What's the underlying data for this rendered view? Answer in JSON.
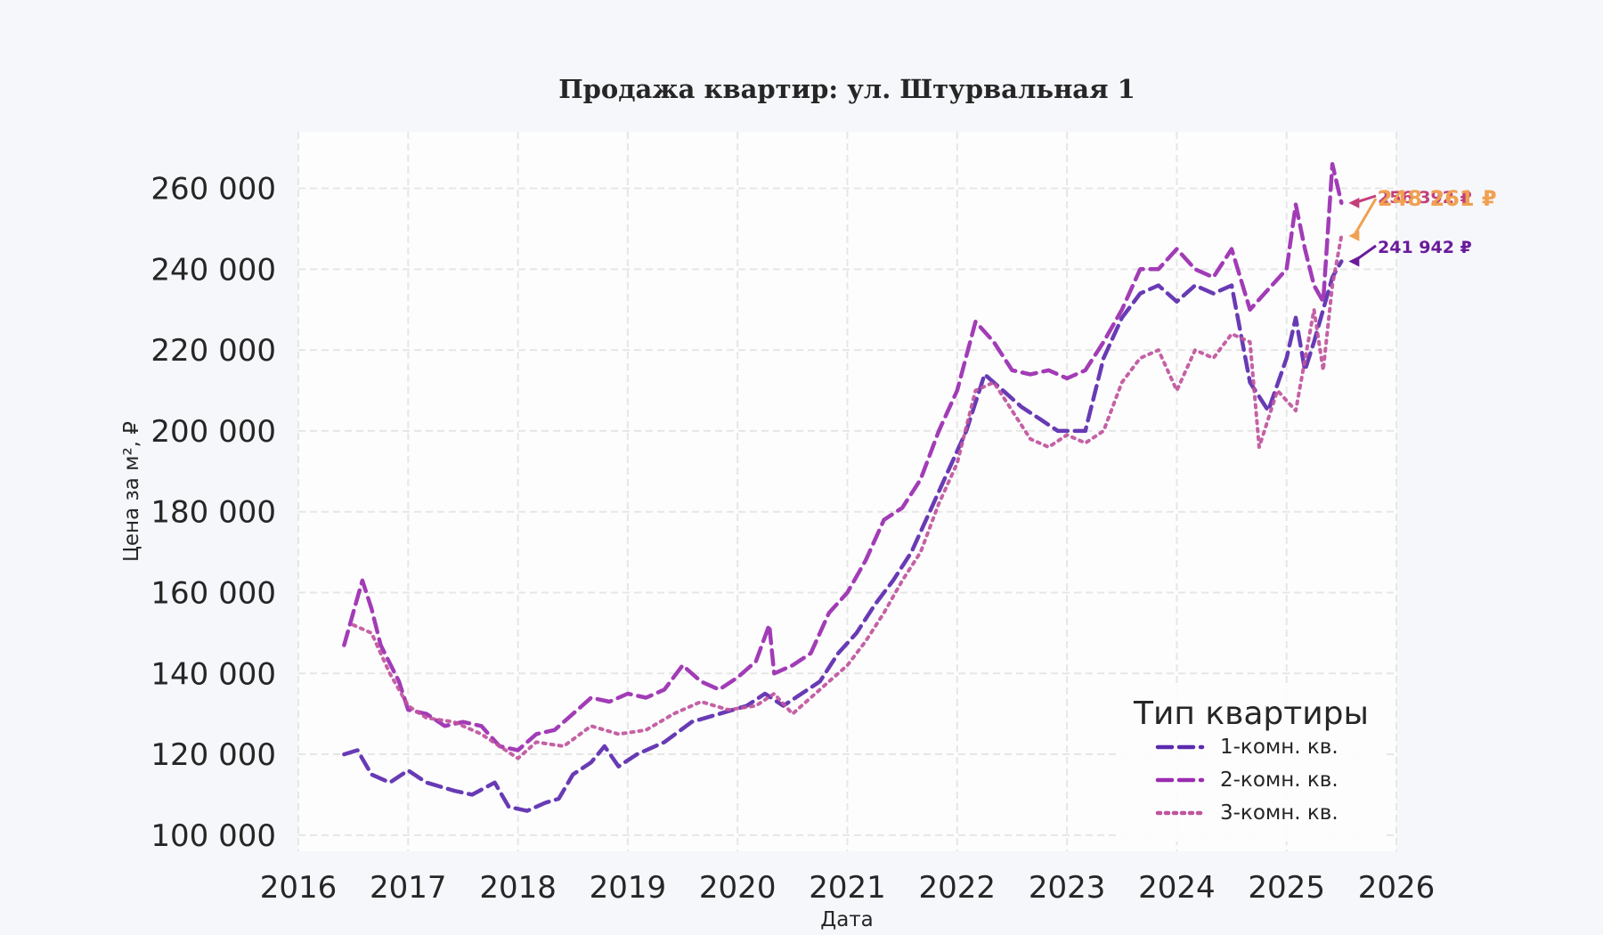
{
  "chart_data": {
    "type": "line",
    "title": "Продажа квартир: ул. Штурвальная 1",
    "xlabel": "Дата",
    "ylabel": "Цена за м², ₽",
    "x_ticks": [
      "2016",
      "2017",
      "2018",
      "2019",
      "2020",
      "2021",
      "2022",
      "2023",
      "2024",
      "2025",
      "2026"
    ],
    "y_ticks": [
      "100 000",
      "120 000",
      "140 000",
      "160 000",
      "180 000",
      "200 000",
      "220 000",
      "240 000",
      "260 000"
    ],
    "xlim": [
      "2016-01-01",
      "2026-01-01"
    ],
    "ylim": [
      96000,
      274000
    ],
    "grid": true,
    "legend": {
      "title": "Тип квартиры",
      "placement": "bottom-right"
    },
    "series": [
      {
        "name": "1-комн. кв.",
        "color": "#5b2aae",
        "style": "dashed",
        "points": [
          [
            "2016-06-01",
            120000
          ],
          [
            "2016-07-15",
            121000
          ],
          [
            "2016-09-01",
            115000
          ],
          [
            "2016-11-01",
            113000
          ],
          [
            "2017-01-01",
            116000
          ],
          [
            "2017-03-01",
            113000
          ],
          [
            "2017-06-01",
            111000
          ],
          [
            "2017-08-01",
            110000
          ],
          [
            "2017-10-15",
            113000
          ],
          [
            "2017-12-01",
            107000
          ],
          [
            "2018-02-01",
            106000
          ],
          [
            "2018-04-01",
            108000
          ],
          [
            "2018-05-15",
            109000
          ],
          [
            "2018-07-01",
            115000
          ],
          [
            "2018-09-01",
            118000
          ],
          [
            "2018-10-15",
            122000
          ],
          [
            "2018-12-01",
            117000
          ],
          [
            "2019-02-01",
            120000
          ],
          [
            "2019-05-01",
            123000
          ],
          [
            "2019-08-01",
            128000
          ],
          [
            "2019-11-01",
            130000
          ],
          [
            "2020-02-01",
            132000
          ],
          [
            "2020-04-01",
            135000
          ],
          [
            "2020-06-01",
            132000
          ],
          [
            "2020-08-01",
            135000
          ],
          [
            "2020-10-01",
            138000
          ],
          [
            "2020-12-01",
            145000
          ],
          [
            "2021-02-01",
            150000
          ],
          [
            "2021-04-01",
            157000
          ],
          [
            "2021-06-01",
            163000
          ],
          [
            "2021-08-01",
            170000
          ],
          [
            "2021-10-01",
            180000
          ],
          [
            "2021-12-01",
            190000
          ],
          [
            "2022-02-01",
            200000
          ],
          [
            "2022-04-01",
            214000
          ],
          [
            "2022-06-01",
            210000
          ],
          [
            "2022-08-01",
            206000
          ],
          [
            "2022-10-01",
            203000
          ],
          [
            "2022-12-01",
            200000
          ],
          [
            "2023-03-01",
            200000
          ],
          [
            "2023-05-01",
            218000
          ],
          [
            "2023-07-01",
            228000
          ],
          [
            "2023-09-01",
            234000
          ],
          [
            "2023-11-01",
            236000
          ],
          [
            "2024-01-01",
            232000
          ],
          [
            "2024-03-01",
            236000
          ],
          [
            "2024-05-01",
            234000
          ],
          [
            "2024-07-01",
            236000
          ],
          [
            "2024-09-01",
            212000
          ],
          [
            "2024-11-01",
            205000
          ],
          [
            "2025-01-01",
            218000
          ],
          [
            "2025-02-01",
            228000
          ],
          [
            "2025-03-01",
            215000
          ],
          [
            "2025-04-01",
            222000
          ],
          [
            "2025-05-01",
            230000
          ],
          [
            "2025-06-01",
            238000
          ],
          [
            "2025-07-01",
            241942
          ]
        ]
      },
      {
        "name": "2-комн. кв.",
        "color": "#9a2bb0",
        "style": "dashed",
        "points": [
          [
            "2016-06-01",
            147000
          ],
          [
            "2016-07-01",
            155000
          ],
          [
            "2016-08-01",
            163000
          ],
          [
            "2016-09-01",
            156000
          ],
          [
            "2016-10-01",
            147000
          ],
          [
            "2016-12-01",
            138000
          ],
          [
            "2017-01-01",
            131000
          ],
          [
            "2017-03-01",
            130000
          ],
          [
            "2017-05-01",
            127000
          ],
          [
            "2017-07-01",
            128000
          ],
          [
            "2017-09-01",
            127000
          ],
          [
            "2017-11-01",
            122000
          ],
          [
            "2018-01-01",
            121000
          ],
          [
            "2018-03-01",
            125000
          ],
          [
            "2018-05-01",
            126000
          ],
          [
            "2018-07-01",
            130000
          ],
          [
            "2018-09-01",
            134000
          ],
          [
            "2018-11-01",
            133000
          ],
          [
            "2019-01-01",
            135000
          ],
          [
            "2019-03-01",
            134000
          ],
          [
            "2019-05-01",
            136000
          ],
          [
            "2019-07-01",
            142000
          ],
          [
            "2019-09-01",
            138000
          ],
          [
            "2019-11-01",
            136000
          ],
          [
            "2020-01-01",
            139000
          ],
          [
            "2020-03-01",
            143000
          ],
          [
            "2020-04-15",
            152000
          ],
          [
            "2020-05-01",
            140000
          ],
          [
            "2020-07-01",
            142000
          ],
          [
            "2020-09-01",
            145000
          ],
          [
            "2020-11-01",
            155000
          ],
          [
            "2021-01-01",
            160000
          ],
          [
            "2021-03-01",
            168000
          ],
          [
            "2021-05-01",
            178000
          ],
          [
            "2021-07-01",
            181000
          ],
          [
            "2021-09-01",
            188000
          ],
          [
            "2021-11-01",
            200000
          ],
          [
            "2022-01-01",
            210000
          ],
          [
            "2022-03-01",
            227000
          ],
          [
            "2022-05-01",
            222000
          ],
          [
            "2022-07-01",
            215000
          ],
          [
            "2022-09-01",
            214000
          ],
          [
            "2022-11-01",
            215000
          ],
          [
            "2023-01-01",
            213000
          ],
          [
            "2023-03-01",
            215000
          ],
          [
            "2023-05-01",
            222000
          ],
          [
            "2023-07-01",
            230000
          ],
          [
            "2023-09-01",
            240000
          ],
          [
            "2023-11-01",
            240000
          ],
          [
            "2024-01-01",
            245000
          ],
          [
            "2024-03-01",
            240000
          ],
          [
            "2024-05-01",
            238000
          ],
          [
            "2024-07-01",
            245000
          ],
          [
            "2024-09-01",
            230000
          ],
          [
            "2024-11-01",
            235000
          ],
          [
            "2025-01-01",
            240000
          ],
          [
            "2025-02-01",
            256000
          ],
          [
            "2025-03-01",
            245000
          ],
          [
            "2025-04-01",
            236000
          ],
          [
            "2025-05-01",
            232000
          ],
          [
            "2025-06-01",
            266000
          ],
          [
            "2025-07-01",
            256392
          ]
        ]
      },
      {
        "name": "3-комн. кв.",
        "color": "#c0549c",
        "style": "dotted",
        "points": [
          [
            "2016-07-01",
            152000
          ],
          [
            "2016-09-01",
            150000
          ],
          [
            "2016-11-01",
            140000
          ],
          [
            "2017-01-01",
            132000
          ],
          [
            "2017-03-01",
            129000
          ],
          [
            "2017-06-01",
            128000
          ],
          [
            "2017-09-01",
            125000
          ],
          [
            "2017-11-01",
            122000
          ],
          [
            "2018-01-01",
            119000
          ],
          [
            "2018-03-01",
            123000
          ],
          [
            "2018-06-01",
            122000
          ],
          [
            "2018-09-01",
            127000
          ],
          [
            "2018-12-01",
            125000
          ],
          [
            "2019-03-01",
            126000
          ],
          [
            "2019-06-01",
            130000
          ],
          [
            "2019-09-01",
            133000
          ],
          [
            "2019-12-01",
            131000
          ],
          [
            "2020-03-01",
            132000
          ],
          [
            "2020-05-01",
            135000
          ],
          [
            "2020-07-01",
            130000
          ],
          [
            "2020-09-01",
            134000
          ],
          [
            "2020-11-01",
            138000
          ],
          [
            "2021-01-01",
            142000
          ],
          [
            "2021-03-01",
            148000
          ],
          [
            "2021-05-01",
            155000
          ],
          [
            "2021-07-01",
            163000
          ],
          [
            "2021-09-01",
            170000
          ],
          [
            "2021-11-01",
            182000
          ],
          [
            "2022-01-01",
            192000
          ],
          [
            "2022-03-01",
            210000
          ],
          [
            "2022-05-01",
            212000
          ],
          [
            "2022-07-01",
            205000
          ],
          [
            "2022-09-01",
            198000
          ],
          [
            "2022-11-01",
            196000
          ],
          [
            "2023-01-01",
            199000
          ],
          [
            "2023-03-01",
            197000
          ],
          [
            "2023-05-01",
            200000
          ],
          [
            "2023-07-01",
            212000
          ],
          [
            "2023-09-01",
            218000
          ],
          [
            "2023-11-01",
            220000
          ],
          [
            "2024-01-01",
            210000
          ],
          [
            "2024-03-01",
            220000
          ],
          [
            "2024-05-01",
            218000
          ],
          [
            "2024-07-01",
            224000
          ],
          [
            "2024-09-01",
            222000
          ],
          [
            "2024-10-01",
            196000
          ],
          [
            "2024-12-01",
            210000
          ],
          [
            "2025-02-01",
            205000
          ],
          [
            "2025-04-01",
            230000
          ],
          [
            "2025-05-01",
            215000
          ],
          [
            "2025-06-01",
            236000
          ],
          [
            "2025-07-01",
            248261
          ]
        ]
      }
    ],
    "end_labels": [
      {
        "series": "1-комн. кв.",
        "text": "241 942 ₽",
        "value": 241942,
        "color": "#6a1b9a"
      },
      {
        "series": "2-комн. кв.",
        "text": "256 392 ₽",
        "value": 256392,
        "color": "#c2407a"
      },
      {
        "series": "3-комн. кв.",
        "text": "248 261 ₽",
        "value": 248261,
        "color": "#f0a050"
      }
    ]
  }
}
